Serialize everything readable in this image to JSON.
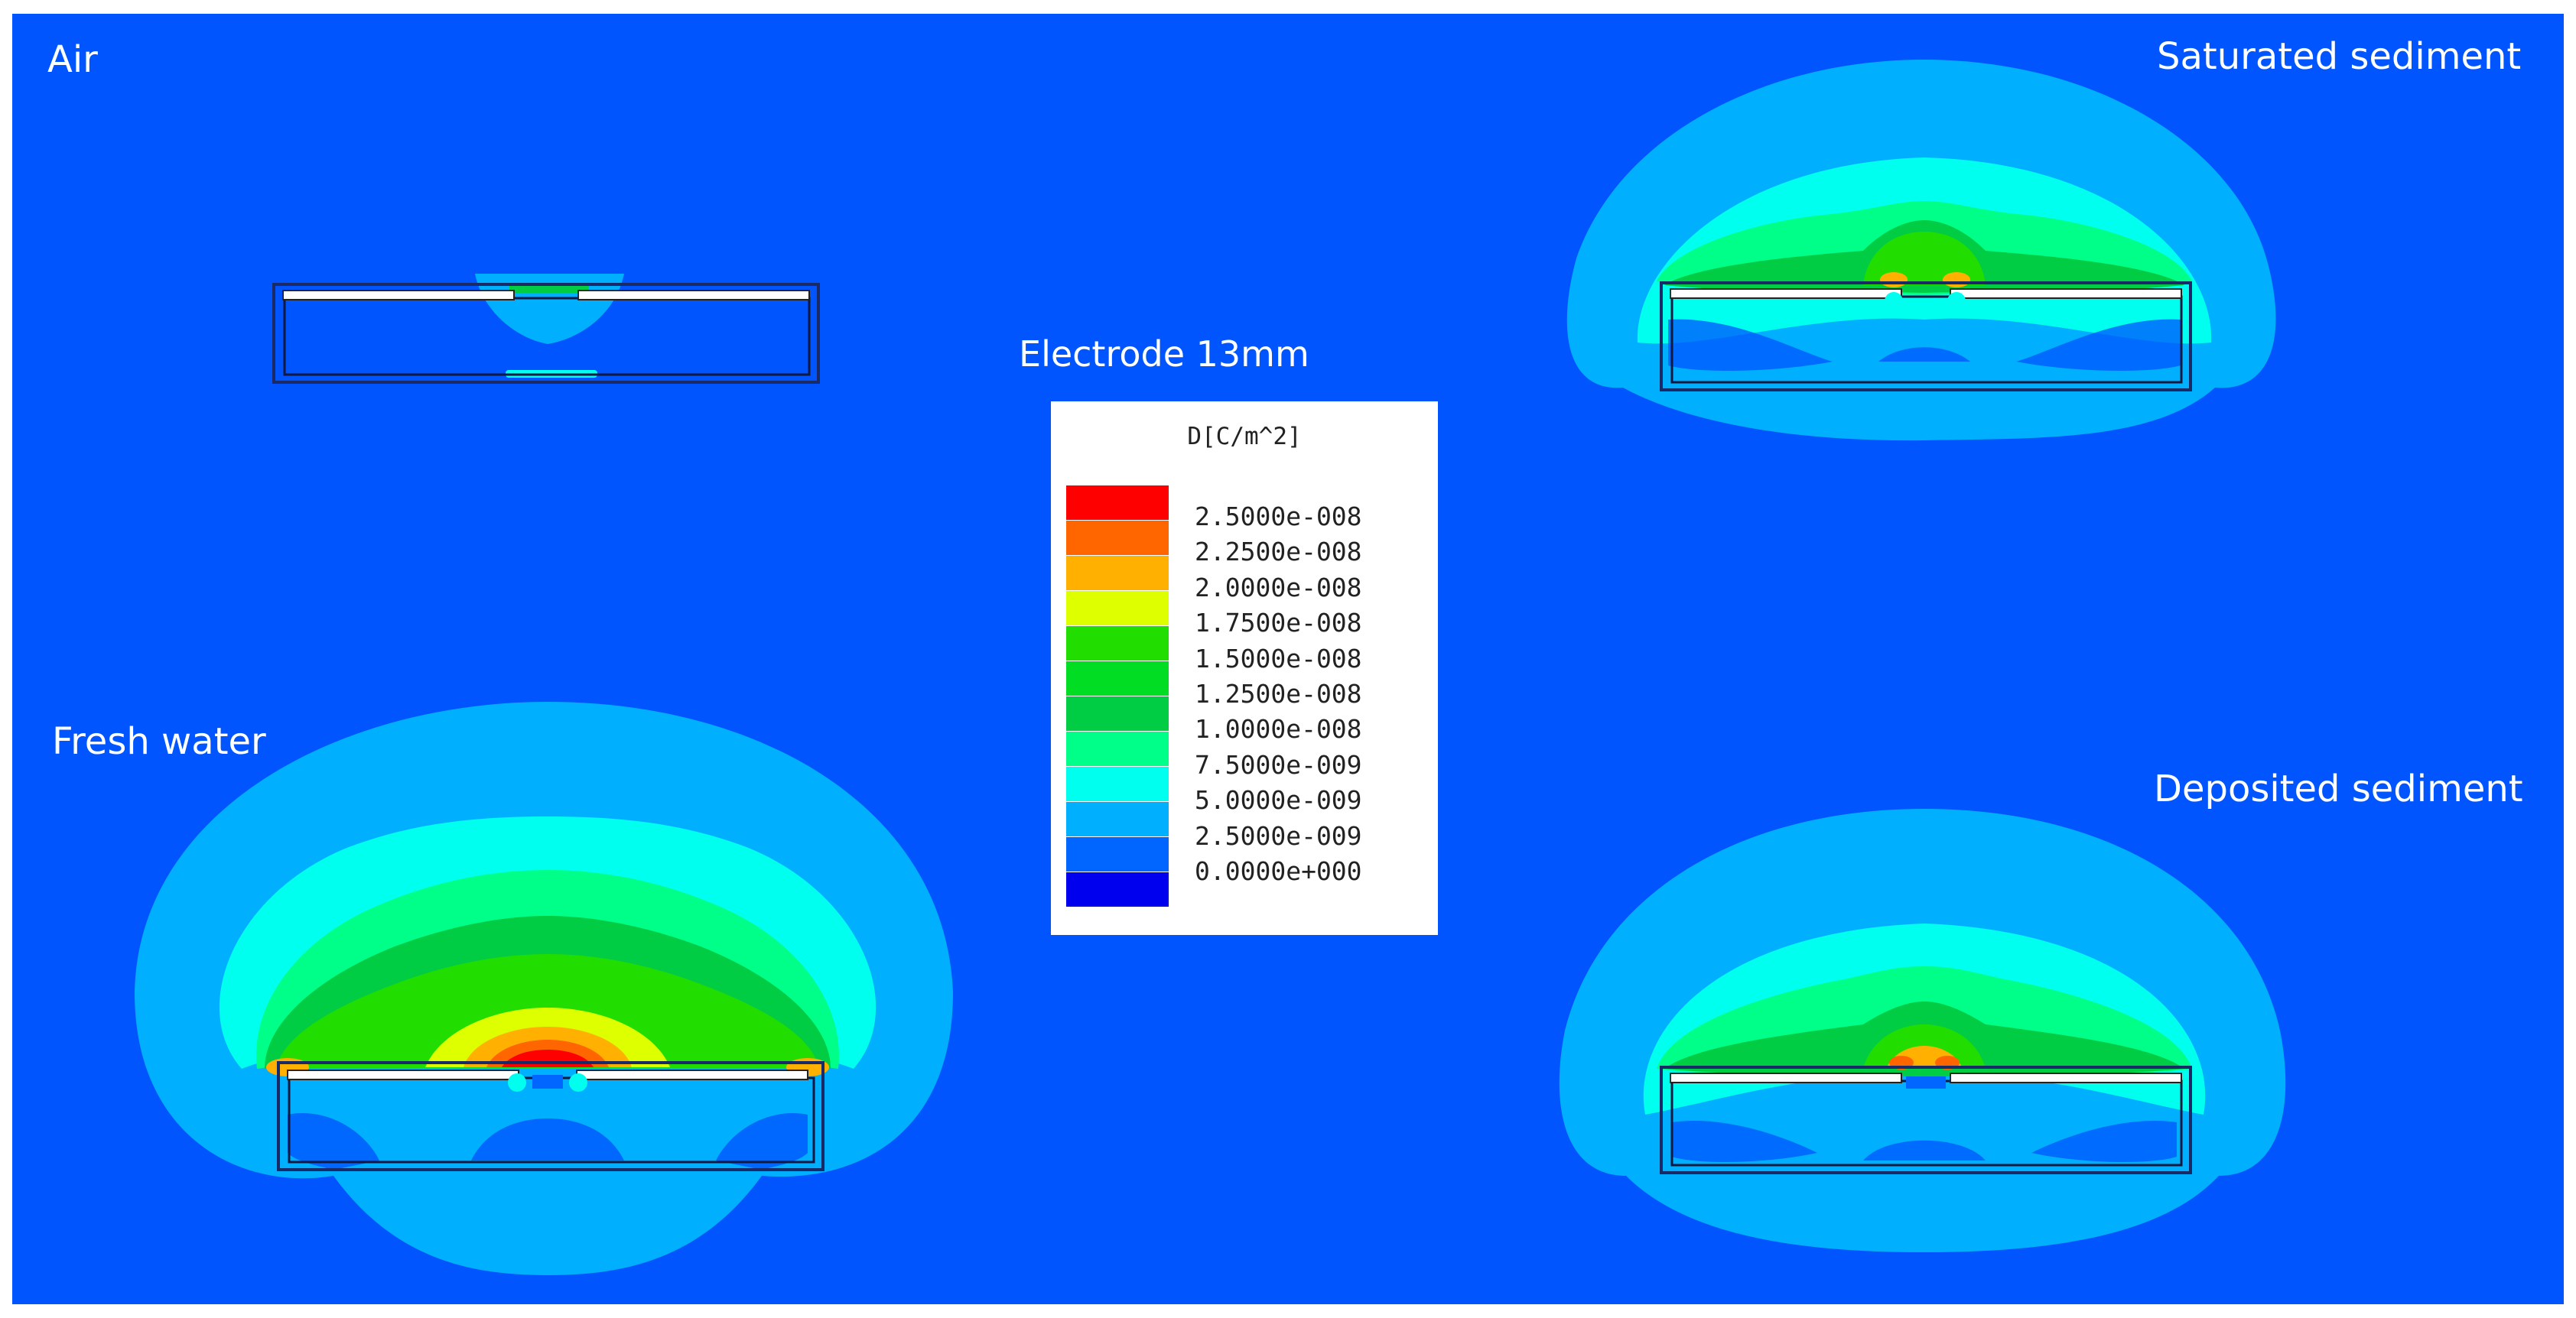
{
  "background_color": "#0055ff",
  "title": "Electrode 13mm",
  "panels": {
    "air": {
      "label": "Air"
    },
    "saturated_sediment": {
      "label": "Saturated sediment"
    },
    "fresh_water": {
      "label": "Fresh water"
    },
    "deposited_sediment": {
      "label": "Deposited sediment"
    }
  },
  "legend": {
    "unit": "D[C/m^2]",
    "levels": [
      {
        "value": "2.5000e-008",
        "color": "#ff0000"
      },
      {
        "value": "2.2500e-008",
        "color": "#ff6600"
      },
      {
        "value": "2.0000e-008",
        "color": "#ffb000"
      },
      {
        "value": "1.7500e-008",
        "color": "#ddff00"
      },
      {
        "value": "1.5000e-008",
        "color": "#22dd00"
      },
      {
        "value": "1.2500e-008",
        "color": "#00dd22"
      },
      {
        "value": "1.0000e-008",
        "color": "#00cc44"
      },
      {
        "value": "7.5000e-009",
        "color": "#00ff88"
      },
      {
        "value": "5.0000e-009",
        "color": "#00ffee"
      },
      {
        "value": "2.5000e-009",
        "color": "#00b0ff"
      },
      {
        "value": "0.0000e+000",
        "color": "#0066ff"
      }
    ],
    "bottom_color": "#0000ee"
  }
}
